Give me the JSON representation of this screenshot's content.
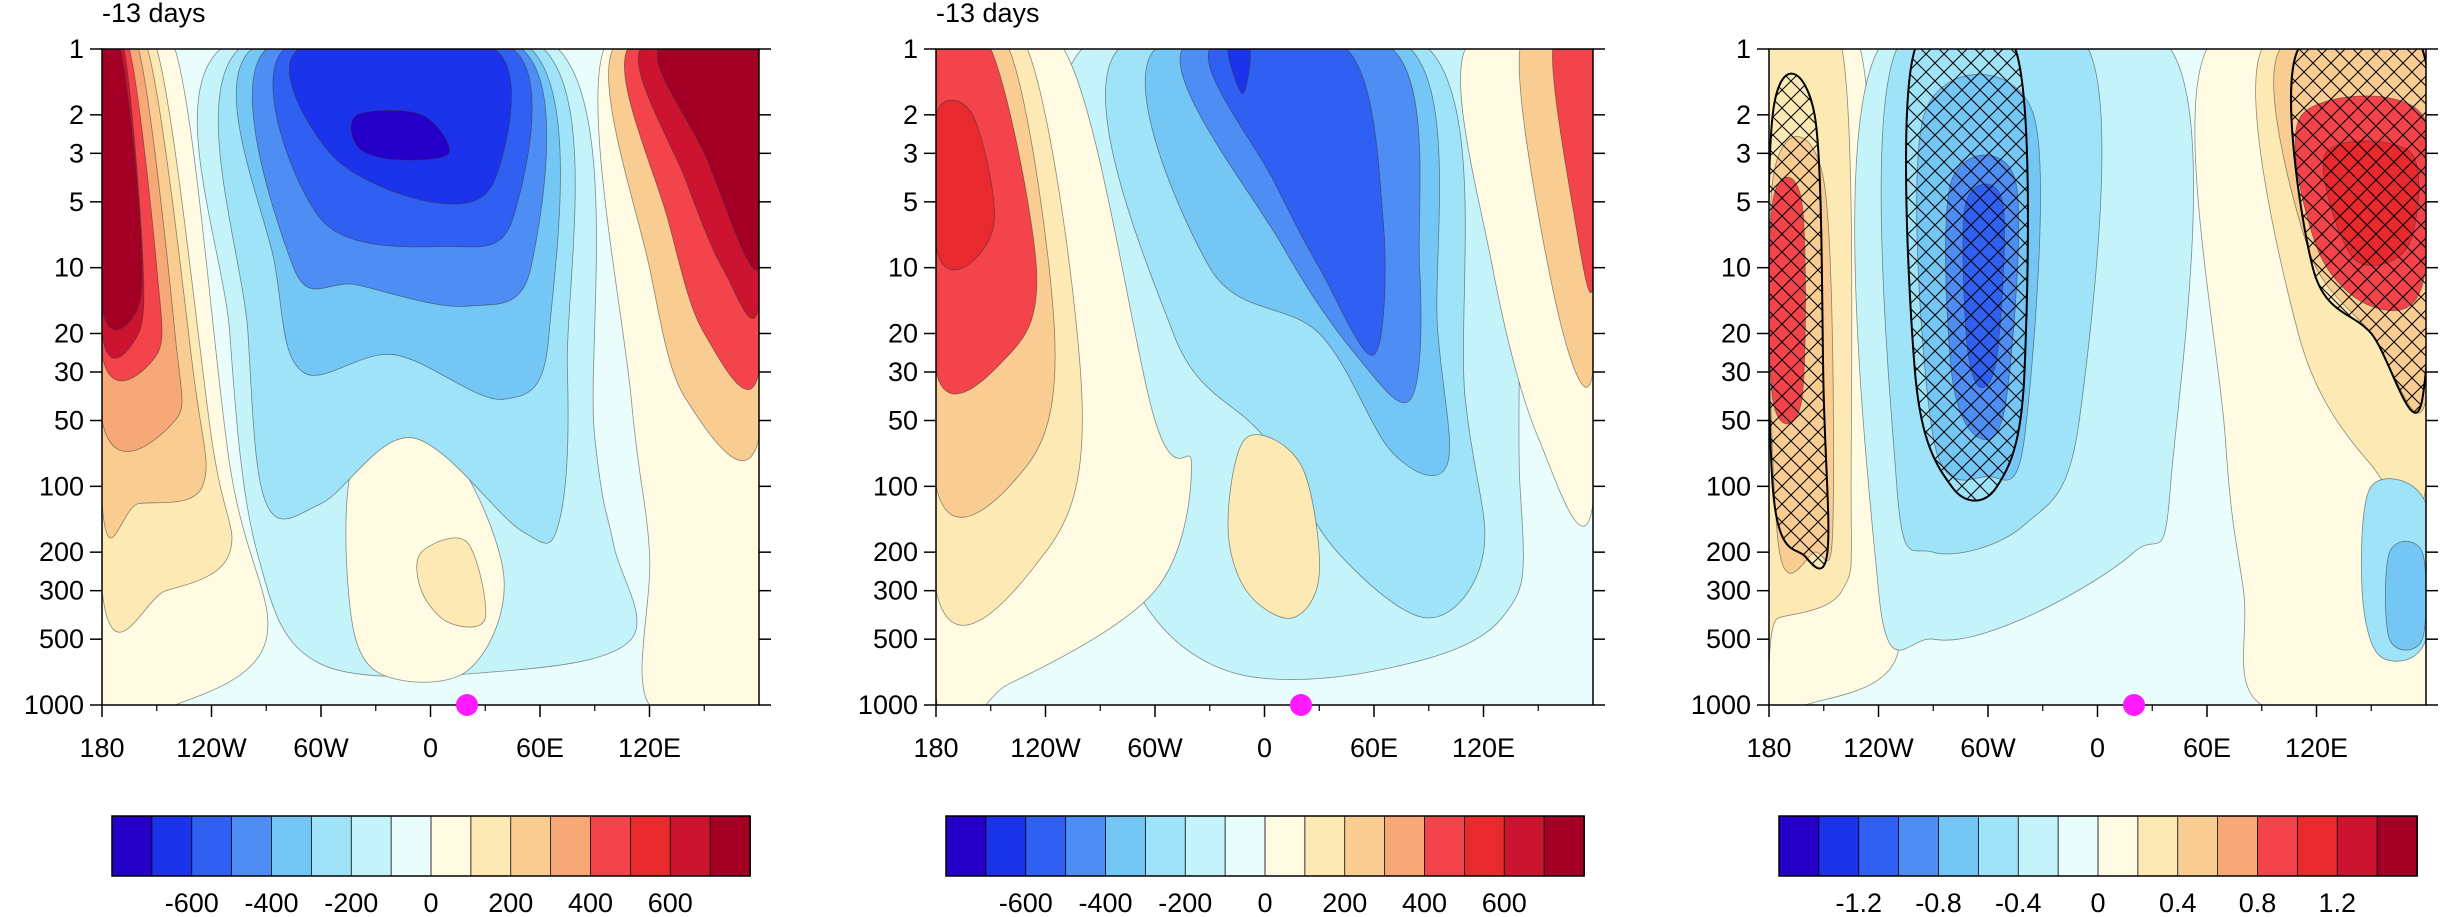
{
  "chart_data": [
    {
      "type": "heatmap",
      "title": "-13 days",
      "xlabel": "",
      "ylabel": "",
      "x_ticks": [
        "180",
        "120W",
        "60W",
        "0",
        "60E",
        "120E"
      ],
      "y_ticks": [
        "1",
        "2",
        "3",
        "5",
        "10",
        "20",
        "30",
        "50",
        "100",
        "200",
        "300",
        "500",
        "1000"
      ],
      "y_scale": "log",
      "y_inverted": true,
      "ylim": [
        1000,
        1
      ],
      "xlim": [
        -180,
        180
      ],
      "marker": {
        "lon": 20,
        "pressure": 1000,
        "color": "#ff1aff"
      },
      "colorbar_labels": [
        "-600",
        "-400",
        "-200",
        "0",
        "200",
        "400",
        "600"
      ],
      "colorbar_levels": [
        -700,
        -600,
        -500,
        -400,
        -300,
        -200,
        -100,
        0,
        100,
        200,
        300,
        400,
        500,
        600,
        700
      ],
      "hatching": false
    },
    {
      "type": "heatmap",
      "title": "-13 days",
      "xlabel": "",
      "ylabel": "",
      "x_ticks": [
        "180",
        "120W",
        "60W",
        "0",
        "60E",
        "120E"
      ],
      "y_ticks": [
        "1",
        "2",
        "3",
        "5",
        "10",
        "20",
        "30",
        "50",
        "100",
        "200",
        "300",
        "500",
        "1000"
      ],
      "y_scale": "log",
      "y_inverted": true,
      "ylim": [
        1000,
        1
      ],
      "xlim": [
        -180,
        180
      ],
      "marker": {
        "lon": 20,
        "pressure": 1000,
        "color": "#ff1aff"
      },
      "colorbar_labels": [
        "-600",
        "-400",
        "-200",
        "0",
        "200",
        "400",
        "600"
      ],
      "colorbar_levels": [
        -700,
        -600,
        -500,
        -400,
        -300,
        -200,
        -100,
        0,
        100,
        200,
        300,
        400,
        500,
        600,
        700
      ],
      "hatching": false
    },
    {
      "type": "heatmap",
      "title": "",
      "xlabel": "",
      "ylabel": "",
      "x_ticks": [
        "180",
        "120W",
        "60W",
        "0",
        "60E",
        "120E"
      ],
      "y_ticks": [
        "1",
        "2",
        "3",
        "5",
        "10",
        "20",
        "30",
        "50",
        "100",
        "200",
        "300",
        "500",
        "1000"
      ],
      "y_scale": "log",
      "y_inverted": true,
      "ylim": [
        1000,
        1
      ],
      "xlim": [
        -180,
        180
      ],
      "marker": {
        "lon": 20,
        "pressure": 1000,
        "color": "#ff1aff"
      },
      "colorbar_labels": [
        "-1.2",
        "-0.8",
        "-0.4",
        "0",
        "0.4",
        "0.8",
        "1.2"
      ],
      "colorbar_levels": [
        -1.4,
        -1.2,
        -1.0,
        -0.8,
        -0.6,
        -0.4,
        -0.2,
        0,
        0.2,
        0.4,
        0.6,
        0.8,
        1.0,
        1.2,
        1.4
      ],
      "hatching": true
    }
  ],
  "palette": [
    "#2400c8",
    "#1c33ec",
    "#2f60f2",
    "#4d8df4",
    "#74c6f5",
    "#9ee3f8",
    "#c4f3fa",
    "#e9fdfd",
    "#fffbe3",
    "#fde9b4",
    "#f9cd91",
    "#f6a877",
    "#f2444a",
    "#e8292d",
    "#cc1431",
    "#a40026"
  ]
}
